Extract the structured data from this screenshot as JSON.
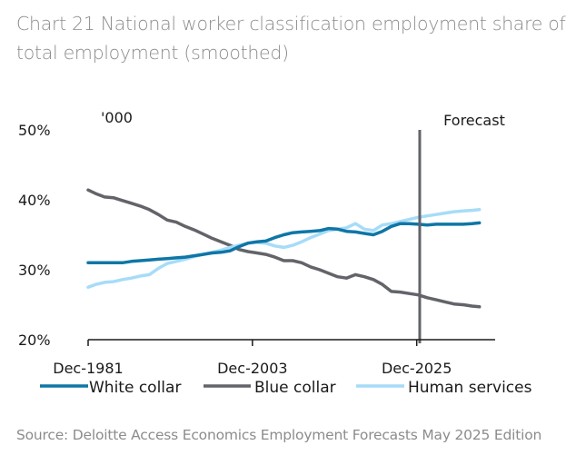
{
  "title": "Chart 21 National worker classification employment share of total employment (smoothed)",
  "source": "Source: Deloitte Access Economics Employment Forecasts May 2025 Edition",
  "chart_data": {
    "type": "line",
    "title": "Chart 21 National worker classification employment share of total employment (smoothed)",
    "xlabel": "",
    "ylabel": "'000",
    "ylim": [
      20,
      50
    ],
    "xlim": [
      1981,
      2035.5
    ],
    "yticks": [
      "20%",
      "30%",
      "40%",
      "50%"
    ],
    "ytick_values": [
      20,
      30,
      40,
      50
    ],
    "xticks": [
      "Dec-1981",
      "Dec-2003",
      "Dec-2025"
    ],
    "xtick_values": [
      1981,
      2003,
      2025
    ],
    "grid": false,
    "legend_position": "bottom",
    "annotations": [
      {
        "text": "Forecast",
        "x": 2025.4,
        "type": "vertical-line"
      }
    ],
    "colors": {
      "white_collar": "#0f76a6",
      "blue_collar": "#626469",
      "human_services": "#a6dcf8",
      "forecast_line": "#626469",
      "axis": "#1a1a1a"
    },
    "x": [
      1981.0,
      1982.0,
      1983.2,
      1984.4,
      1985.6,
      1986.8,
      1988.0,
      1989.2,
      1990.4,
      1991.6,
      1992.8,
      1994.0,
      1995.2,
      1996.4,
      1997.6,
      1998.8,
      2000.0,
      2001.2,
      2002.4,
      2003.6,
      2004.8,
      2006.0,
      2007.2,
      2008.4,
      2009.6,
      2010.8,
      2012.0,
      2013.2,
      2014.4,
      2015.6,
      2016.8,
      2018.0,
      2019.2,
      2020.4,
      2021.6,
      2022.8,
      2024.0,
      2025.2,
      2026.4,
      2027.6,
      2028.8,
      2030.0,
      2031.2,
      2032.4,
      2033.4
    ],
    "series": [
      {
        "name": "White collar",
        "values": [
          31.0,
          31.0,
          31.0,
          31.0,
          31.0,
          31.2,
          31.3,
          31.4,
          31.5,
          31.6,
          31.7,
          31.8,
          32.0,
          32.2,
          32.4,
          32.5,
          32.7,
          33.3,
          33.8,
          34.0,
          34.1,
          34.6,
          35.0,
          35.3,
          35.4,
          35.5,
          35.6,
          35.9,
          35.8,
          35.5,
          35.4,
          35.2,
          35.0,
          35.5,
          36.2,
          36.6,
          36.6,
          36.5,
          36.4,
          36.5,
          36.5,
          36.5,
          36.5,
          36.6,
          36.7
        ]
      },
      {
        "name": "Blue collar",
        "values": [
          41.4,
          40.9,
          40.4,
          40.3,
          39.9,
          39.5,
          39.1,
          38.6,
          37.9,
          37.1,
          36.8,
          36.2,
          35.7,
          35.1,
          34.5,
          34.0,
          33.5,
          32.9,
          32.6,
          32.4,
          32.2,
          31.8,
          31.3,
          31.3,
          31.0,
          30.4,
          30.0,
          29.5,
          29.0,
          28.8,
          29.3,
          29.0,
          28.6,
          27.9,
          26.9,
          26.8,
          26.6,
          26.4,
          26.0,
          25.7,
          25.4,
          25.1,
          25.0,
          24.8,
          24.7
        ]
      },
      {
        "name": "Human services",
        "values": [
          27.5,
          27.9,
          28.2,
          28.3,
          28.6,
          28.8,
          29.1,
          29.3,
          30.2,
          30.9,
          31.2,
          31.5,
          31.9,
          32.2,
          32.5,
          32.8,
          33.2,
          33.5,
          33.8,
          33.9,
          33.8,
          33.4,
          33.2,
          33.5,
          34.0,
          34.6,
          35.1,
          35.6,
          35.8,
          36.0,
          36.6,
          35.8,
          35.6,
          36.4,
          36.6,
          36.9,
          37.2,
          37.5,
          37.7,
          37.9,
          38.1,
          38.3,
          38.4,
          38.5,
          38.6
        ]
      }
    ]
  }
}
